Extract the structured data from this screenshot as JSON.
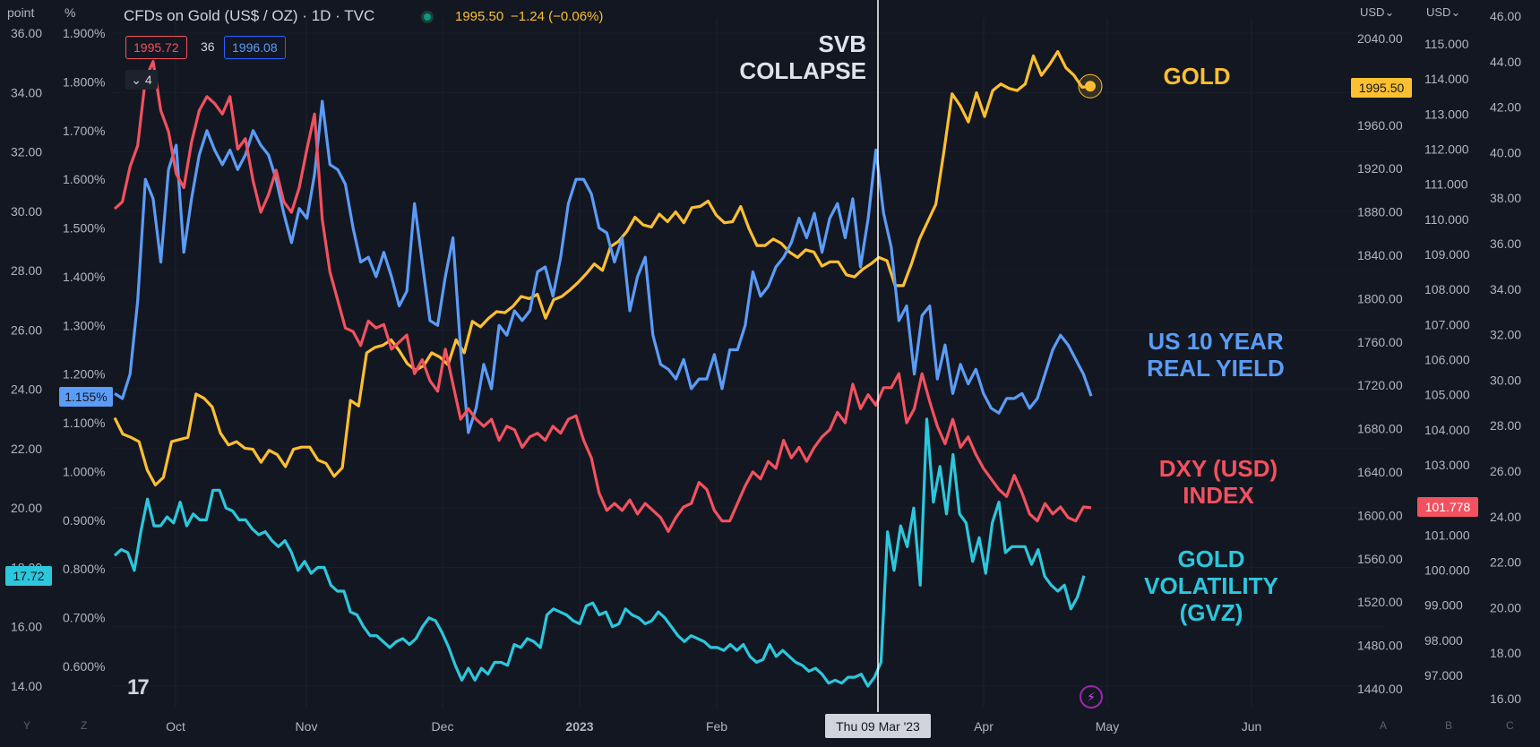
{
  "header": {
    "title": "CFDs on Gold (US$ / OZ) · 1D · TVC",
    "last": "1995.50",
    "change": "−1.24 (−0.06%)",
    "bid": "1995.72",
    "spread": "36",
    "ask": "1996.08",
    "collapse_count": "4",
    "left_unit_1": "point",
    "left_unit_2": "%",
    "right_unit_1": "USD",
    "right_unit_2": "USD"
  },
  "colors": {
    "gold": "#fcbf32",
    "real_yield": "#5b9cf6",
    "dxy": "#f2515e",
    "gvz": "#2cc7dc",
    "background": "#131722"
  },
  "annotations": {
    "event": [
      "SVB",
      "COLLAPSE"
    ],
    "gold": [
      "GOLD"
    ],
    "real_yield": [
      "US 10 YEAR",
      "REAL YIELD"
    ],
    "dxy": [
      "DXY (USD)",
      "INDEX"
    ],
    "gvz": [
      "GOLD",
      "VOLATILITY",
      "(GVZ)"
    ]
  },
  "crosshair_date": "Thu 09 Mar '23",
  "corner_buttons": [
    "Y",
    "Z",
    "A",
    "B",
    "C"
  ],
  "chart_data": {
    "type": "line",
    "x_labels": [
      "Oct",
      "Nov",
      "Dec",
      "2023",
      "Feb",
      "Apr",
      "May",
      "Jun"
    ],
    "axes": {
      "gvz_points": {
        "ticks": [
          "36.00",
          "34.00",
          "32.00",
          "30.00",
          "28.00",
          "26.00",
          "24.00",
          "22.00",
          "20.00",
          "18.00",
          "16.00",
          "14.00"
        ],
        "range": [
          14,
          36
        ]
      },
      "real_yield_pct": {
        "ticks": [
          "1.900%",
          "1.800%",
          "1.700%",
          "1.600%",
          "1.500%",
          "1.400%",
          "1.300%",
          "1.200%",
          "1.100%",
          "1.000%",
          "0.900%",
          "0.800%",
          "0.700%",
          "0.600%"
        ],
        "range": [
          0.55,
          1.9
        ]
      },
      "gold_usd": {
        "ticks": [
          "2040.00",
          "1960.00",
          "1920.00",
          "1880.00",
          "1840.00",
          "1800.00",
          "1760.00",
          "1720.00",
          "1680.00",
          "1640.00",
          "1600.00",
          "1560.00",
          "1520.00",
          "1480.00",
          "1440.00"
        ],
        "range": [
          1440,
          2040
        ]
      },
      "dxy_usd": {
        "ticks": [
          "115.000",
          "114.000",
          "113.000",
          "112.000",
          "111.000",
          "110.000",
          "109.000",
          "108.000",
          "107.000",
          "106.000",
          "105.000",
          "104.000",
          "103.000",
          "101.000",
          "100.000",
          "99.000",
          "98.000",
          "97.000"
        ],
        "range": [
          97,
          115
        ]
      },
      "far_right": {
        "ticks": [
          "46.00",
          "44.00",
          "42.00",
          "40.00",
          "38.00",
          "36.00",
          "34.00",
          "32.00",
          "30.00",
          "28.00",
          "26.00",
          "24.00",
          "22.00",
          "20.00",
          "18.00",
          "16.00"
        ],
        "range": [
          16,
          46
        ]
      }
    },
    "last_value_labels": {
      "real_yield": "1.155%",
      "gvz": "17.72",
      "gold": "1995.50",
      "dxy": "101.778"
    },
    "series": [
      {
        "name": "Gold",
        "color": "#fcbf32",
        "values": [
          1690,
          1675,
          1672,
          1668,
          1642,
          1628,
          1635,
          1668,
          1670,
          1672,
          1712,
          1708,
          1700,
          1676,
          1665,
          1668,
          1662,
          1661,
          1649,
          1660,
          1656,
          1645,
          1661,
          1663,
          1663,
          1651,
          1648,
          1636,
          1644,
          1706,
          1701,
          1750,
          1755,
          1757,
          1762,
          1752,
          1740,
          1734,
          1738,
          1750,
          1746,
          1739,
          1762,
          1750,
          1779,
          1774,
          1782,
          1788,
          1787,
          1793,
          1802,
          1800,
          1804,
          1782,
          1799,
          1802,
          1808,
          1815,
          1823,
          1832,
          1826,
          1848,
          1853,
          1862,
          1875,
          1868,
          1866,
          1878,
          1871,
          1880,
          1870,
          1884,
          1885,
          1890,
          1877,
          1870,
          1871,
          1885,
          1865,
          1849,
          1849,
          1855,
          1851,
          1843,
          1838,
          1845,
          1843,
          1830,
          1834,
          1834,
          1822,
          1820,
          1827,
          1832,
          1838,
          1835,
          1812,
          1812,
          1832,
          1855,
          1871,
          1887,
          1936,
          1989,
          1978,
          1963,
          1990,
          1968,
          1992,
          1998,
          1994,
          1992,
          1998,
          2024,
          2006,
          2016,
          2028,
          2013,
          2006,
          1995,
          1996
        ]
      },
      {
        "name": "US 10 Year Real Yield",
        "color": "#5b9cf6",
        "values": [
          1.16,
          1.15,
          1.2,
          1.35,
          1.6,
          1.56,
          1.43,
          1.62,
          1.67,
          1.45,
          1.56,
          1.65,
          1.7,
          1.66,
          1.63,
          1.66,
          1.62,
          1.65,
          1.7,
          1.67,
          1.65,
          1.6,
          1.53,
          1.47,
          1.54,
          1.52,
          1.61,
          1.76,
          1.63,
          1.62,
          1.59,
          1.5,
          1.43,
          1.44,
          1.4,
          1.45,
          1.4,
          1.34,
          1.37,
          1.55,
          1.43,
          1.31,
          1.3,
          1.4,
          1.48,
          1.25,
          1.08,
          1.13,
          1.22,
          1.17,
          1.3,
          1.28,
          1.33,
          1.31,
          1.33,
          1.41,
          1.42,
          1.36,
          1.44,
          1.55,
          1.6,
          1.6,
          1.57,
          1.5,
          1.49,
          1.43,
          1.48,
          1.33,
          1.4,
          1.44,
          1.28,
          1.22,
          1.21,
          1.19,
          1.23,
          1.17,
          1.19,
          1.19,
          1.24,
          1.17,
          1.25,
          1.25,
          1.3,
          1.41,
          1.36,
          1.38,
          1.42,
          1.44,
          1.47,
          1.52,
          1.48,
          1.53,
          1.45,
          1.52,
          1.55,
          1.48,
          1.56,
          1.42,
          1.52,
          1.66,
          1.53,
          1.46,
          1.31,
          1.34,
          1.2,
          1.32,
          1.34,
          1.19,
          1.26,
          1.16,
          1.22,
          1.18,
          1.21,
          1.16,
          1.13,
          1.12,
          1.15,
          1.15,
          1.16,
          1.13,
          1.15,
          1.2,
          1.25,
          1.28,
          1.26,
          1.23,
          1.2,
          1.155
        ]
      },
      {
        "name": "DXY (USD) Index",
        "color": "#f2515e",
        "values": [
          110.3,
          110.5,
          111.5,
          112.1,
          114.0,
          114.5,
          113.1,
          112.5,
          111.3,
          110.9,
          112.2,
          113.1,
          113.5,
          113.3,
          113.0,
          113.5,
          112.0,
          112.3,
          111.1,
          110.2,
          110.7,
          111.4,
          110.5,
          110.2,
          110.9,
          112.0,
          113.0,
          110.0,
          108.5,
          107.7,
          106.9,
          106.8,
          106.4,
          107.1,
          106.9,
          107.0,
          106.3,
          106.5,
          106.7,
          105.6,
          106.0,
          105.4,
          105.1,
          106.3,
          105.3,
          104.3,
          104.6,
          104.3,
          104.1,
          104.3,
          103.7,
          104.1,
          104.0,
          103.5,
          103.8,
          103.9,
          103.7,
          104.1,
          103.9,
          104.3,
          104.4,
          103.7,
          103.2,
          102.2,
          101.7,
          101.9,
          101.7,
          102.0,
          101.6,
          101.9,
          101.7,
          101.5,
          101.1,
          101.5,
          101.8,
          101.9,
          102.5,
          102.3,
          101.7,
          101.4,
          101.4,
          101.9,
          102.4,
          102.8,
          102.6,
          103.1,
          102.9,
          103.7,
          103.2,
          103.5,
          103.1,
          103.5,
          103.8,
          104.0,
          104.5,
          104.2,
          105.3,
          104.6,
          105.0,
          104.7,
          105.2,
          105.2,
          105.6,
          104.2,
          104.6,
          105.6,
          104.8,
          104.1,
          103.6,
          104.3,
          103.5,
          103.8,
          103.3,
          102.9,
          102.6,
          102.3,
          102.1,
          102.7,
          102.2,
          101.6,
          101.4,
          101.9,
          101.6,
          101.8,
          101.5,
          101.4,
          101.8,
          101.778
        ]
      },
      {
        "name": "Gold Volatility (GVZ)",
        "color": "#2cc7dc",
        "values": [
          18.4,
          18.6,
          18.5,
          17.9,
          19.2,
          20.3,
          19.4,
          19.4,
          19.7,
          19.5,
          20.2,
          19.4,
          19.8,
          19.6,
          19.6,
          20.6,
          20.6,
          20.0,
          19.9,
          19.6,
          19.6,
          19.3,
          19.1,
          19.2,
          18.9,
          18.7,
          18.9,
          18.5,
          17.9,
          18.2,
          17.8,
          18.0,
          18.0,
          17.4,
          17.2,
          17.2,
          16.5,
          16.4,
          16.0,
          15.7,
          15.7,
          15.5,
          15.3,
          15.5,
          15.6,
          15.4,
          15.6,
          16.0,
          16.3,
          16.2,
          15.8,
          15.3,
          14.7,
          14.2,
          14.6,
          14.2,
          14.6,
          14.4,
          14.8,
          14.8,
          14.7,
          15.4,
          15.3,
          15.6,
          15.5,
          15.3,
          16.4,
          16.6,
          16.5,
          16.4,
          16.2,
          16.1,
          16.7,
          16.8,
          16.4,
          16.5,
          16.0,
          16.1,
          16.6,
          16.4,
          16.3,
          16.1,
          16.2,
          16.5,
          16.3,
          16.0,
          15.7,
          15.5,
          15.7,
          15.6,
          15.5,
          15.3,
          15.3,
          15.2,
          15.4,
          15.2,
          15.4,
          15.0,
          14.8,
          14.9,
          15.4,
          15.0,
          15.2,
          15.0,
          14.8,
          14.7,
          14.5,
          14.6,
          14.4,
          14.1,
          14.2,
          14.1,
          14.3,
          14.3,
          14.4,
          14.0,
          14.3,
          14.8,
          19.2,
          17.9,
          19.4,
          18.7,
          20.0,
          17.4,
          23.0,
          20.2,
          21.4,
          19.8,
          21.8,
          19.8,
          19.5,
          18.2,
          19.0,
          17.8,
          19.5,
          20.2,
          18.5,
          18.7,
          18.7,
          18.7,
          18.1,
          18.6,
          17.7,
          17.4,
          17.2,
          17.4,
          16.6,
          17.0,
          17.72
        ]
      }
    ]
  }
}
